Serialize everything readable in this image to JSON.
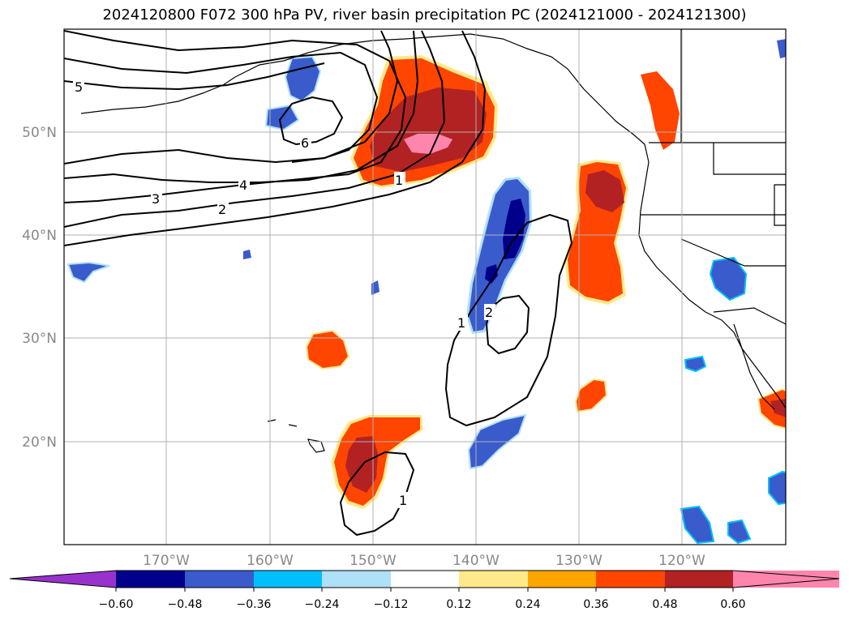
{
  "title": "2024120800 F072 300 hPa PV, river basin precipitation PC (2024121000 - 2024121300)",
  "map": {
    "lon_labels": [
      "170°W",
      "160°W",
      "150°W",
      "140°W",
      "130°W",
      "120°W"
    ],
    "lat_labels": [
      "50°N",
      "40°N",
      "30°N",
      "20°N"
    ],
    "contour_labels": [
      "5",
      "6",
      "4",
      "3",
      "2",
      "1",
      "1",
      "2",
      "1"
    ],
    "colors": {
      "dark_blue": "#00008b",
      "royal_blue": "#3a5bcc",
      "deep_sky": "#00bfff",
      "light_blue": "#aee0f8",
      "yellow": "#ffe98a",
      "orange": "#ffa500",
      "red_orange": "#ff4500",
      "firebrick": "#b22222",
      "pink": "#ff85ad",
      "purple": "#9932cc"
    }
  },
  "colorbar": {
    "tick_labels": [
      "−0.60",
      "−0.48",
      "−0.36",
      "−0.24",
      "−0.12",
      "0.12",
      "0.24",
      "0.36",
      "0.48",
      "0.60"
    ],
    "colors": [
      "#9932cc",
      "#00008b",
      "#3a5bcc",
      "#00bfff",
      "#aee0f8",
      "#ffffff",
      "#ffe98a",
      "#ffa500",
      "#ff4500",
      "#b22222",
      "#ff85ad"
    ]
  }
}
